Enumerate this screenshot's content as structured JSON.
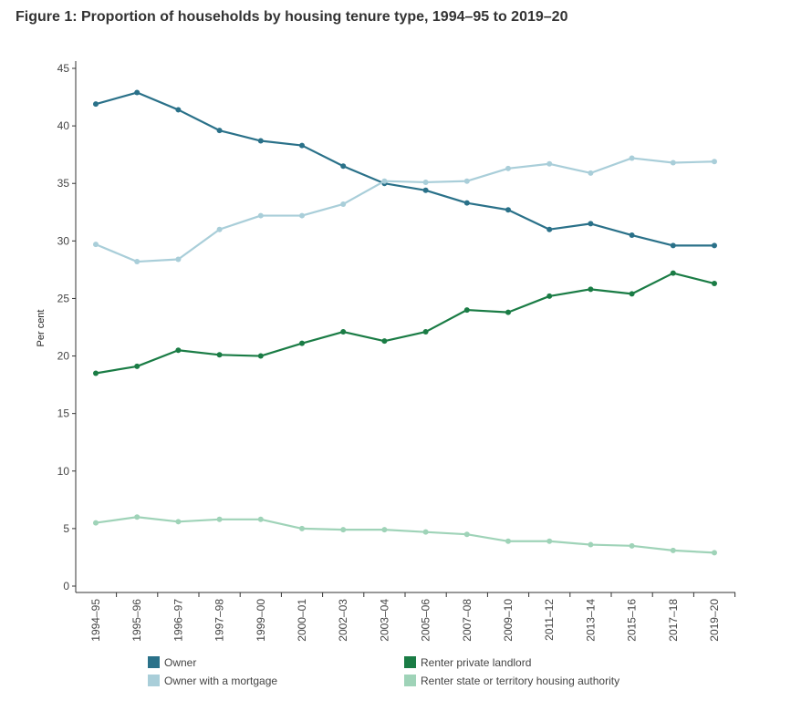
{
  "title": "Figure 1: Proportion of households by housing tenure type, 1994–95 to 2019–20",
  "chart_data": {
    "type": "line",
    "title": "Figure 1: Proportion of households by housing tenure type, 1994–95 to 2019–20",
    "xlabel": "",
    "ylabel": "Per cent",
    "ylim": [
      0,
      45
    ],
    "yticks": [
      0,
      5,
      10,
      15,
      20,
      25,
      30,
      35,
      40,
      45
    ],
    "grid": false,
    "legend_position": "bottom",
    "categories": [
      "1994–95",
      "1995–96",
      "1996–97",
      "1997–98",
      "1999–00",
      "2000–01",
      "2002–03",
      "2003–04",
      "2005–06",
      "2007–08",
      "2009–10",
      "2011–12",
      "2013–14",
      "2015–16",
      "2017–18",
      "2019–20"
    ],
    "series": [
      {
        "name": "Owner",
        "color": "#2a7189",
        "values": [
          41.9,
          42.9,
          41.4,
          39.6,
          38.7,
          38.3,
          36.5,
          35.0,
          34.4,
          33.3,
          32.7,
          31.0,
          31.5,
          30.5,
          29.6,
          29.6
        ]
      },
      {
        "name": "Owner with a mortgage",
        "color": "#a9ced9",
        "values": [
          29.7,
          28.2,
          28.4,
          31.0,
          32.2,
          32.2,
          33.2,
          35.2,
          35.1,
          35.2,
          36.3,
          36.7,
          35.9,
          37.2,
          36.8,
          36.9
        ]
      },
      {
        "name": "Renter private landlord",
        "color": "#1a7c45",
        "values": [
          18.5,
          19.1,
          20.5,
          20.1,
          20.0,
          21.1,
          22.1,
          21.3,
          22.1,
          24.0,
          23.8,
          25.2,
          25.8,
          25.4,
          27.2,
          26.3
        ]
      },
      {
        "name": "Renter state or territory housing authority",
        "color": "#9fd3b8",
        "values": [
          5.5,
          6.0,
          5.6,
          5.8,
          5.8,
          5.0,
          4.9,
          4.9,
          4.7,
          4.5,
          3.9,
          3.9,
          3.6,
          3.5,
          3.1,
          2.9
        ]
      }
    ]
  }
}
